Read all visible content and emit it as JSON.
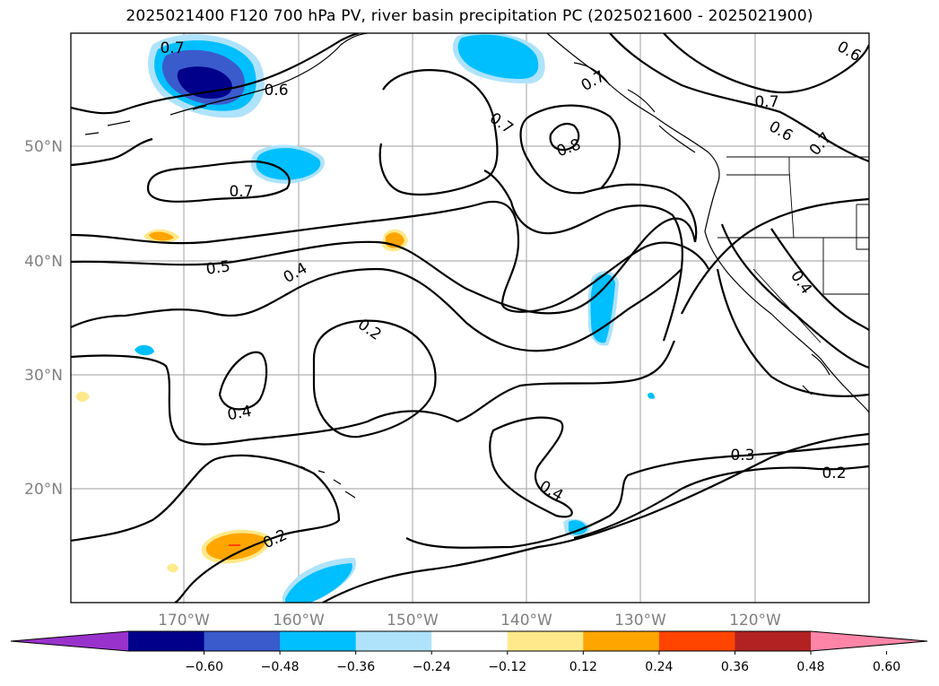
{
  "title": "2025021400 F120 700 hPa PV, river basin precipitation PC (2025021600 - 2025021900)",
  "lat_labels": [
    "50°N",
    "40°N",
    "30°N",
    "20°N"
  ],
  "lon_labels": [
    "170°W",
    "160°W",
    "150°W",
    "140°W",
    "130°W",
    "120°W"
  ],
  "contour_labels": [
    "0.7",
    "0.6",
    "0.7",
    "0.7",
    "0.8",
    "0.7",
    "0.6",
    "0.7",
    "0.6",
    "0.7",
    "0.5",
    "0.4",
    "0.2",
    "0.4",
    "0.4",
    "0.4",
    "0.3",
    "0.2",
    "0.2"
  ],
  "colorbar": {
    "ticks": [
      "−0.60",
      "−0.48",
      "−0.36",
      "−0.24",
      "−0.12",
      "0.12",
      "0.24",
      "0.36",
      "0.48",
      "0.60"
    ],
    "colors": [
      "#9932cc",
      "#00008b",
      "#3a5bcc",
      "#00bfff",
      "#aee3fb",
      "#ffffff",
      "#ffe98a",
      "#ffa500",
      "#ff4500",
      "#b22222",
      "#ff85a8"
    ]
  }
}
